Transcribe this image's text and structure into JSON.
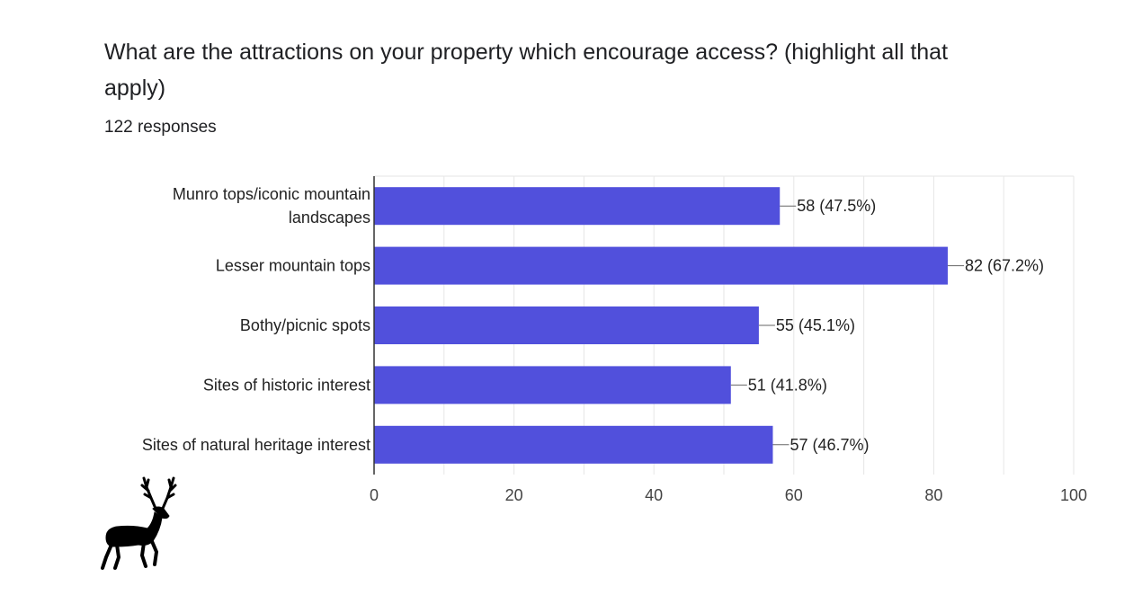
{
  "question": {
    "title": "What are the attractions on your property which encourage access? (highlight all that apply)",
    "responses": "122 responses"
  },
  "colors": {
    "bar": "#5150dc",
    "grid": "#e6e6e6",
    "axis": "#333333"
  },
  "chart_data": {
    "type": "bar",
    "orientation": "horizontal",
    "categories": [
      [
        "Munro tops/iconic mountain",
        "landscapes"
      ],
      [
        "Lesser mountain tops"
      ],
      [
        "Bothy/picnic spots"
      ],
      [
        "Sites of historic interest"
      ],
      [
        "Sites of natural heritage interest"
      ]
    ],
    "values": [
      58,
      82,
      55,
      51,
      57
    ],
    "value_labels": [
      "58 (47.5%)",
      "82 (67.2%)",
      "55 (45.1%)",
      "51 (41.8%)",
      "57 (46.7%)"
    ],
    "xlim": [
      0,
      100
    ],
    "xticks": [
      0,
      20,
      40,
      60,
      80,
      100
    ],
    "grid": true
  },
  "logo": {
    "icon": "deer-silhouette-icon"
  }
}
